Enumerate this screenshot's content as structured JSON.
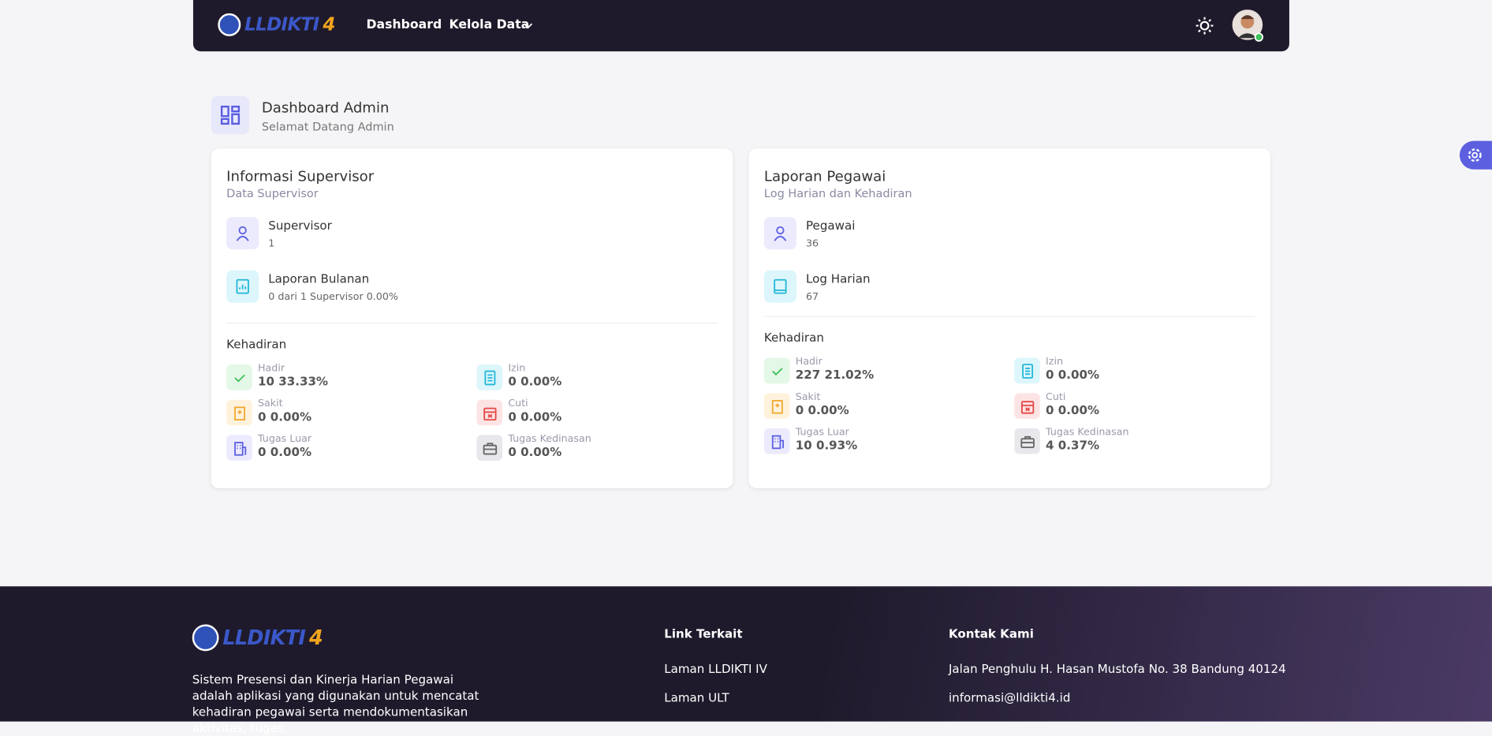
{
  "nav": {
    "logo": {
      "main": "LLDIKTI",
      "accent": "4"
    },
    "items": [
      "Dashboard",
      "Kelola Data"
    ]
  },
  "header": {
    "title": "Dashboard Admin",
    "subtitle": "Selamat Datang Admin"
  },
  "cards": [
    {
      "title": "Informasi Supervisor",
      "subtitle": "Data Supervisor",
      "stats": [
        {
          "label": "Supervisor",
          "value": "1"
        },
        {
          "label": "Laporan Bulanan",
          "value": "0 dari 1 Supervisor 0.00%"
        }
      ],
      "attendance_title": "Kehadiran",
      "attendance": [
        {
          "label": "Hadir",
          "value": "10 33.33%"
        },
        {
          "label": "Izin",
          "value": "0 0.00%"
        },
        {
          "label": "Sakit",
          "value": "0 0.00%"
        },
        {
          "label": "Cuti",
          "value": "0 0.00%"
        },
        {
          "label": "Tugas Luar",
          "value": "0 0.00%"
        },
        {
          "label": "Tugas Kedinasan",
          "value": "0 0.00%"
        }
      ]
    },
    {
      "title": "Laporan Pegawai",
      "subtitle": "Log Harian dan Kehadiran",
      "stats": [
        {
          "label": "Pegawai",
          "value": "36"
        },
        {
          "label": "Log Harian",
          "value": "67"
        }
      ],
      "attendance_title": "Kehadiran",
      "attendance": [
        {
          "label": "Hadir",
          "value": "227 21.02%"
        },
        {
          "label": "Izin",
          "value": "0 0.00%"
        },
        {
          "label": "Sakit",
          "value": "0 0.00%"
        },
        {
          "label": "Cuti",
          "value": "0 0.00%"
        },
        {
          "label": "Tugas Luar",
          "value": "10 0.93%"
        },
        {
          "label": "Tugas Kedinasan",
          "value": "4 0.37%"
        }
      ]
    }
  ],
  "footer": {
    "logo": {
      "main": "LLDIKTI",
      "accent": "4"
    },
    "description": "Sistem Presensi dan Kinerja Harian Pegawai adalah aplikasi yang digunakan untuk mencatat kehadiran pegawai serta mendokumentasikan aktivitas, tugas,",
    "links_title": "Link Terkait",
    "links": [
      "Laman LLDIKTI IV",
      "Laman ULT"
    ],
    "contact_title": "Kontak Kami",
    "contact": [
      "Jalan Penghulu H. Hasan Mustofa No. 38 Bandung 40124",
      "informasi@lldikti4.id"
    ]
  }
}
